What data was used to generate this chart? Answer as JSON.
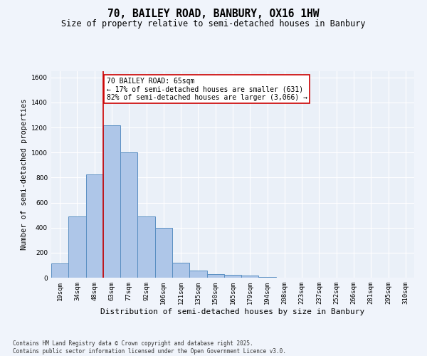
{
  "title": "70, BAILEY ROAD, BANBURY, OX16 1HW",
  "subtitle": "Size of property relative to semi-detached houses in Banbury",
  "xlabel": "Distribution of semi-detached houses by size in Banbury",
  "ylabel": "Number of semi-detached properties",
  "categories": [
    "19sqm",
    "34sqm",
    "48sqm",
    "63sqm",
    "77sqm",
    "92sqm",
    "106sqm",
    "121sqm",
    "135sqm",
    "150sqm",
    "165sqm",
    "179sqm",
    "194sqm",
    "208sqm",
    "223sqm",
    "237sqm",
    "252sqm",
    "266sqm",
    "281sqm",
    "295sqm",
    "310sqm"
  ],
  "values": [
    115,
    490,
    825,
    1220,
    1000,
    490,
    400,
    120,
    55,
    30,
    20,
    15,
    5,
    0,
    0,
    0,
    0,
    0,
    0,
    0,
    0
  ],
  "bar_color": "#aec6e8",
  "bar_edge_color": "#5a8fc2",
  "bar_edge_width": 0.7,
  "red_line_label": "70 BAILEY ROAD: 65sqm",
  "annotation_smaller": "← 17% of semi-detached houses are smaller (631)",
  "annotation_larger": "82% of semi-detached houses are larger (3,066) →",
  "annotation_box_color": "#ffffff",
  "annotation_box_edge": "#cc0000",
  "red_line_color": "#cc0000",
  "ylim": [
    0,
    1650
  ],
  "yticks": [
    0,
    200,
    400,
    600,
    800,
    1000,
    1200,
    1400,
    1600
  ],
  "background_color": "#eaf0f8",
  "grid_color": "#ffffff",
  "footer_line1": "Contains HM Land Registry data © Crown copyright and database right 2025.",
  "footer_line2": "Contains public sector information licensed under the Open Government Licence v3.0.",
  "title_fontsize": 10.5,
  "subtitle_fontsize": 8.5,
  "xlabel_fontsize": 8,
  "ylabel_fontsize": 7.5,
  "tick_fontsize": 6.5,
  "footer_fontsize": 5.5,
  "annot_fontsize": 7
}
